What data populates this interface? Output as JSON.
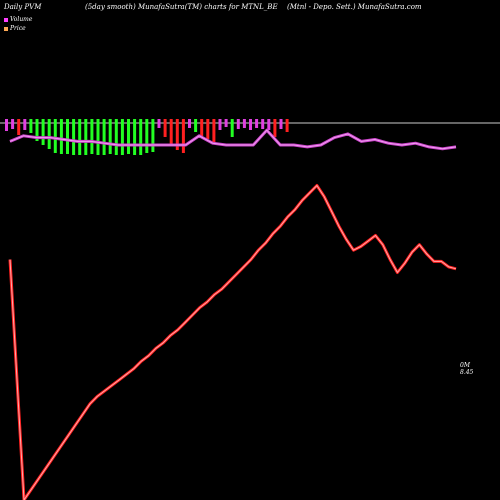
{
  "header": {
    "left": "Daily PVM",
    "center": "(5day smooth) MunafaSutra(TM) charts for MTNL_BE",
    "right": "(Mtnl - Depo. Sett.) MunafaSutra.com"
  },
  "legend": [
    {
      "label": "Volume",
      "color": "#ff40ff"
    },
    {
      "label": "Price",
      "color": "#ffaa55"
    }
  ],
  "end_labels": {
    "volume": "0M",
    "price": "8.45"
  },
  "colors": {
    "background": "#000000",
    "baseline": "#cccccc",
    "bar_up": "#22ff22",
    "bar_down": "#ff2020",
    "bar_neutral": "#e040e0",
    "price_line": "#ff2020",
    "price_highlight": "#ffaaaa",
    "volume_line": "#cc44cc",
    "volume_highlight": "#f0a0f0"
  },
  "chart_data": {
    "type": "line",
    "title": "(5day smooth) MunafaSutra(TM) charts for MTNL_BE",
    "bars": [
      {
        "value": -8,
        "color": "magenta"
      },
      {
        "value": -6,
        "color": "magenta"
      },
      {
        "value": -12,
        "color": "red"
      },
      {
        "value": -7,
        "color": "magenta"
      },
      {
        "value": -10,
        "color": "green"
      },
      {
        "value": -18,
        "color": "green"
      },
      {
        "value": -22,
        "color": "green"
      },
      {
        "value": -26,
        "color": "green"
      },
      {
        "value": -30,
        "color": "green"
      },
      {
        "value": -31,
        "color": "green"
      },
      {
        "value": -31,
        "color": "green"
      },
      {
        "value": -32,
        "color": "green"
      },
      {
        "value": -32,
        "color": "green"
      },
      {
        "value": -32,
        "color": "green"
      },
      {
        "value": -31,
        "color": "green"
      },
      {
        "value": -32,
        "color": "green"
      },
      {
        "value": -32,
        "color": "green"
      },
      {
        "value": -31,
        "color": "green"
      },
      {
        "value": -32,
        "color": "green"
      },
      {
        "value": -32,
        "color": "green"
      },
      {
        "value": -31,
        "color": "green"
      },
      {
        "value": -32,
        "color": "green"
      },
      {
        "value": -32,
        "color": "green"
      },
      {
        "value": -30,
        "color": "green"
      },
      {
        "value": -29,
        "color": "green"
      },
      {
        "value": -5,
        "color": "magenta"
      },
      {
        "value": -14,
        "color": "red"
      },
      {
        "value": -22,
        "color": "red"
      },
      {
        "value": -27,
        "color": "red"
      },
      {
        "value": -30,
        "color": "red"
      },
      {
        "value": -5,
        "color": "magenta"
      },
      {
        "value": -9,
        "color": "green"
      },
      {
        "value": -13,
        "color": "red"
      },
      {
        "value": -16,
        "color": "red"
      },
      {
        "value": -21,
        "color": "red"
      },
      {
        "value": -7,
        "color": "magenta"
      },
      {
        "value": -4,
        "color": "magenta"
      },
      {
        "value": -14,
        "color": "green"
      },
      {
        "value": -6,
        "color": "magenta"
      },
      {
        "value": -5,
        "color": "magenta"
      },
      {
        "value": -7,
        "color": "magenta"
      },
      {
        "value": -5,
        "color": "magenta"
      },
      {
        "value": -6,
        "color": "magenta"
      },
      {
        "value": -7,
        "color": "magenta"
      },
      {
        "value": -14,
        "color": "red"
      },
      {
        "value": -6,
        "color": "magenta"
      },
      {
        "value": -9,
        "color": "red"
      }
    ],
    "price": [
      -48,
      -44,
      -41,
      -38,
      -35,
      -32,
      -29,
      -25,
      -22,
      -18,
      -15,
      -11,
      -8,
      -4,
      0,
      4,
      7,
      11,
      14,
      18,
      22,
      26,
      30,
      35,
      39,
      44,
      48,
      53,
      57,
      62,
      66,
      70,
      64,
      56,
      48,
      41,
      35,
      37,
      40,
      43,
      38,
      30,
      23,
      28,
      34,
      38,
      33,
      29,
      29,
      26,
      25
    ],
    "volume": [
      29,
      32,
      31,
      31,
      30,
      29,
      29,
      28,
      27,
      27,
      27,
      27,
      27,
      27,
      32,
      28,
      27,
      27,
      27,
      35,
      27,
      27,
      26,
      27,
      31,
      33,
      29,
      30,
      28,
      27,
      28,
      26,
      25,
      26
    ],
    "ylim": [
      -100,
      100
    ]
  }
}
